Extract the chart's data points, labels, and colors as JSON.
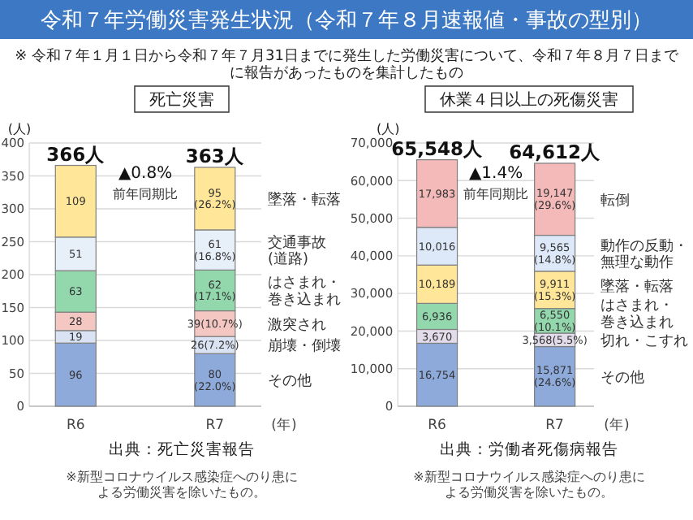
{
  "chart_data": [
    {
      "type": "other",
      "title": "令和７年労働災害発生状況（令和７年８月速報値・事故の型別）",
      "subtitle": "※ 令和７年１月１日から令和７年７月31日までに発生した労働災害について、令和７年８月７日までに報告があったものを集計したもの"
    },
    {
      "type": "bar",
      "stacked": true,
      "title": "死亡災害",
      "xlabel": "(年)",
      "ylabel": "(人)",
      "categories": [
        "R6",
        "R7"
      ],
      "ylim": [
        0,
        400
      ],
      "yticks": [
        0,
        50,
        100,
        150,
        200,
        250,
        300,
        350,
        400
      ],
      "grid": "y",
      "series": [
        {
          "name": "その他",
          "color": "#8eaadb",
          "values": [
            96,
            80
          ],
          "value_labels": [
            "96",
            "80\n(22.0%)"
          ]
        },
        {
          "name": "崩壊・倒壊",
          "color": "#dae3f3",
          "values": [
            19,
            26
          ],
          "value_labels": [
            "19",
            "26(7.2%)"
          ]
        },
        {
          "name": "激突され",
          "color": "#f4c7c3",
          "values": [
            28,
            39
          ],
          "value_labels": [
            "28",
            "39(10.7%)"
          ]
        },
        {
          "name": "はさまれ・巻き込まれ",
          "color": "#93d8ad",
          "values": [
            63,
            62
          ],
          "value_labels": [
            "63",
            "62\n(17.1%)"
          ]
        },
        {
          "name": "交通事故(道路)",
          "color": "#e7eff9",
          "values": [
            51,
            61
          ],
          "value_labels": [
            "51",
            "61\n(16.8%)"
          ]
        },
        {
          "name": "墜落・転落",
          "color": "#ffe699",
          "values": [
            109,
            95
          ],
          "value_labels": [
            "109",
            "95\n(26.2%)"
          ]
        }
      ],
      "totals": [
        "366人",
        "363人"
      ],
      "annotations": [
        "▲0.8%",
        "前年同期比",
        "出典：死亡災害報告",
        "※新型コロナウイルス感染症へのり患による労働災害を除いたもの。"
      ]
    },
    {
      "type": "bar",
      "stacked": true,
      "title": "休業４日以上の死傷災害",
      "xlabel": "(年)",
      "ylabel": "(人)",
      "categories": [
        "R6",
        "R7"
      ],
      "ylim": [
        0,
        70000
      ],
      "yticks": [
        0,
        {
          "value": 10000,
          "label": "10,000"
        },
        {
          "value": 20000,
          "label": "20,000"
        },
        {
          "value": 30000,
          "label": "30,000"
        },
        {
          "value": 40000,
          "label": "40,000"
        },
        {
          "value": 50000,
          "label": "50,000"
        },
        {
          "value": 60000,
          "label": "60,000"
        },
        {
          "value": 70000,
          "label": "70,000"
        }
      ],
      "grid": "y",
      "series": [
        {
          "name": "その他",
          "color": "#8eaadb",
          "values": [
            16754,
            15871
          ],
          "value_labels": [
            "16,754",
            "15,871\n(24.6%)"
          ]
        },
        {
          "name": "切れ・こすれ",
          "color": "#e2dcea",
          "values": [
            3670,
            3568
          ],
          "value_labels": [
            "3,670",
            "3,568(5.5%)"
          ]
        },
        {
          "name": "はさまれ・巻き込まれ",
          "color": "#93d8ad",
          "values": [
            6936,
            6550
          ],
          "value_labels": [
            "6,936",
            "6,550\n(10.1%)"
          ]
        },
        {
          "name": "墜落・転落",
          "color": "#ffe699",
          "values": [
            10189,
            9911
          ],
          "value_labels": [
            "10,189",
            "9,911\n(15.3%)"
          ]
        },
        {
          "name": "動作の反動・無理な動作",
          "color": "#dde9f8",
          "values": [
            10016,
            9565
          ],
          "value_labels": [
            "10,016",
            "9,565\n(14.8%)"
          ]
        },
        {
          "name": "転倒",
          "color": "#f4b9b9",
          "values": [
            17983,
            19147
          ],
          "value_labels": [
            "17,983",
            "19,147\n(29.6%)"
          ]
        }
      ],
      "totals": [
        "65,548人",
        "64,612人"
      ],
      "annotations": [
        "▲1.4%",
        "前年同期比",
        "出典：労働者死傷病報告",
        "※新型コロナウイルス感染症へのり患による労働災害を除いたもの。"
      ]
    }
  ]
}
